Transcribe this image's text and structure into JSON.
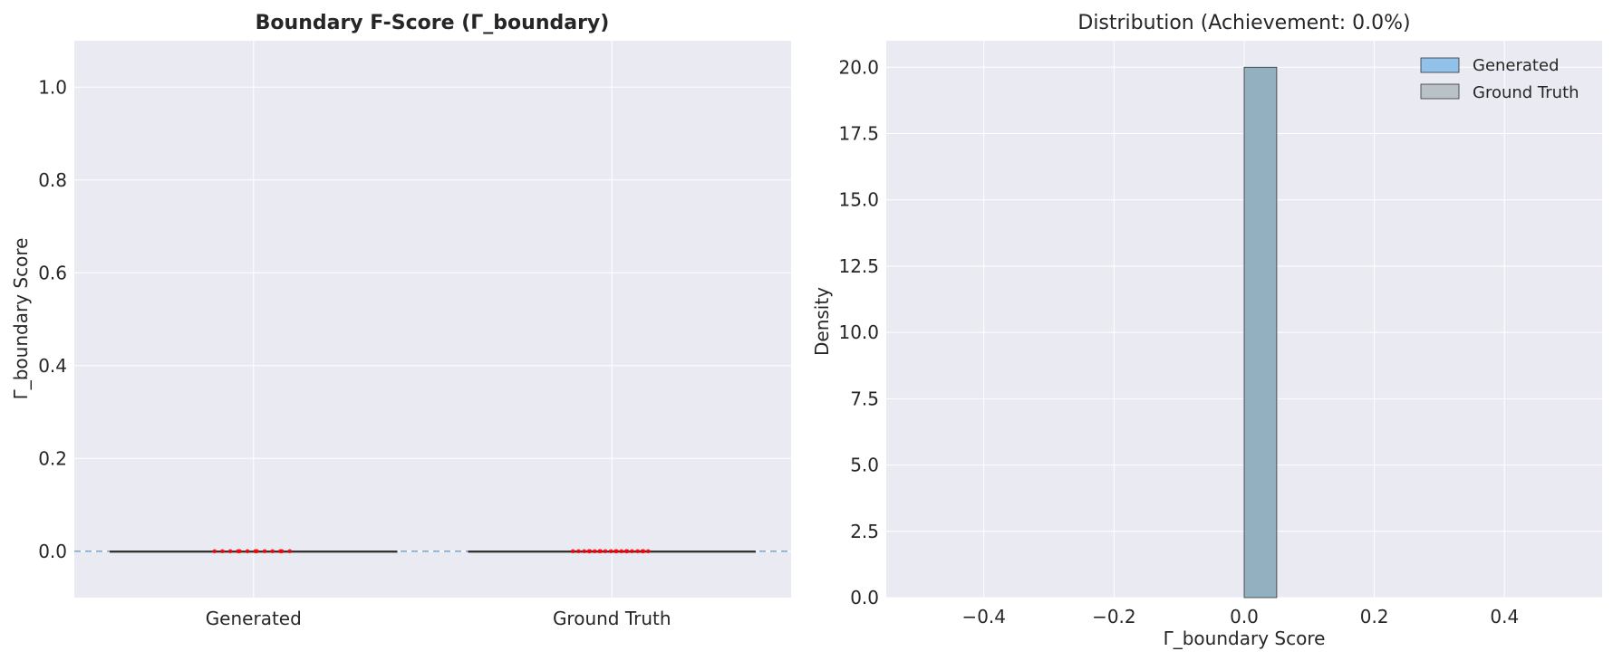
{
  "chart_data": [
    {
      "type": "box",
      "title": "Boundary F-Score (Γ_boundary)",
      "xlabel": "",
      "ylabel": "Γ_boundary Score",
      "ylim": [
        -0.1,
        1.1
      ],
      "yticks": [
        "0.0",
        "0.2",
        "0.4",
        "0.6",
        "0.8",
        "1.0"
      ],
      "categories": [
        "Generated",
        "Ground Truth"
      ],
      "series": [
        {
          "name": "Generated",
          "min": 0.0,
          "q1": 0.0,
          "median": 0.0,
          "q3": 0.0,
          "max": 0.0,
          "points": [
            0.0,
            0.0,
            0.0,
            0.0,
            0.0,
            0.0,
            0.0,
            0.0,
            0.0,
            0.0,
            0.0,
            0.0,
            0.0
          ]
        },
        {
          "name": "Ground Truth",
          "min": 0.0,
          "q1": 0.0,
          "median": 0.0,
          "q3": 0.0,
          "max": 0.0,
          "points": [
            0.0,
            0.0,
            0.0,
            0.0,
            0.0,
            0.0,
            0.0,
            0.0,
            0.0,
            0.0,
            0.0,
            0.0,
            0.0,
            0.0,
            0.0,
            0.0,
            0.0,
            0.0,
            0.0,
            0.0
          ]
        }
      ],
      "reference_line": 0.0,
      "grid": true,
      "colors": {
        "background": "#eaeaf2",
        "box": "#333333",
        "points": "#ff0000",
        "refline": "#7aa6c8"
      }
    },
    {
      "type": "histogram",
      "title": "Distribution (Achievement: 0.0%)",
      "xlabel": "Γ_boundary Score",
      "ylabel": "Density",
      "xlim": [
        -0.55,
        0.55
      ],
      "ylim": [
        0,
        21
      ],
      "xticks": [
        "−0.4",
        "−0.2",
        "0.0",
        "0.2",
        "0.4"
      ],
      "yticks": [
        "0.0",
        "2.5",
        "5.0",
        "7.5",
        "10.0",
        "12.5",
        "15.0",
        "17.5",
        "20.0"
      ],
      "bins": [
        {
          "x0": 0.0,
          "x1": 0.05,
          "value": 20.0
        }
      ],
      "series": [
        {
          "name": "Generated",
          "color": "#92c2ea"
        },
        {
          "name": "Ground Truth",
          "color": "#b9c3c7"
        }
      ],
      "bar_color": "#93b0c1",
      "legend": "top-right",
      "grid": true,
      "colors": {
        "background": "#eaeaf2"
      }
    }
  ]
}
